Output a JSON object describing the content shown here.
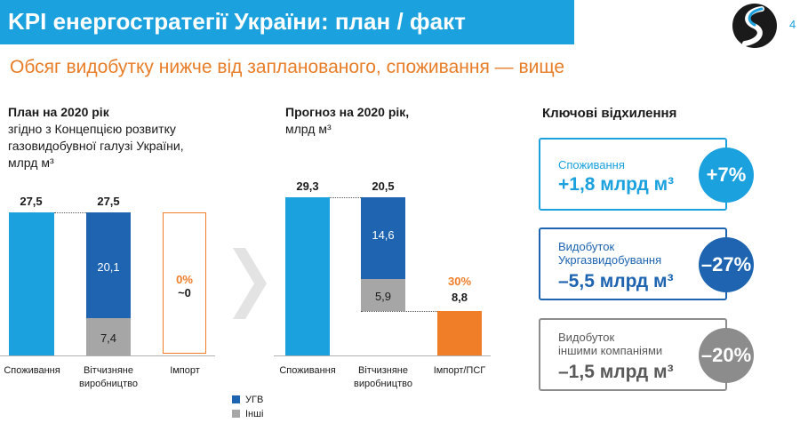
{
  "header": {
    "title": "KPI енергостратегії України: план / факт",
    "page_number": "4",
    "subtitle": "Обсяг видобутку нижче від запланованого, споживання — вище"
  },
  "plan": {
    "heading": "План на 2020 рік",
    "desc": [
      "згідно з Концепцією розвитку",
      "газовидобувної галузі України,",
      "млрд м³"
    ],
    "bars": [
      {
        "label": "Споживання",
        "total": "27,5"
      },
      {
        "label1": "Вітчизняне",
        "label2": "виробництво",
        "total": "27,5",
        "ugv": "20,1",
        "other": "7,4"
      },
      {
        "label": "Імпорт",
        "pct": "0%",
        "value": "~0"
      }
    ]
  },
  "forecast": {
    "heading": "Прогноз на 2020 рік,",
    "desc": "млрд м³",
    "bars": [
      {
        "label": "Споживання",
        "total": "29,3"
      },
      {
        "label1": "Вітчизняне",
        "label2": "виробництво",
        "total": "20,5",
        "ugv": "14,6",
        "other": "5,9"
      },
      {
        "label": "Імпорт/ПСГ",
        "pct": "30%",
        "value": "8,8"
      }
    ]
  },
  "legend": {
    "ugv": "УГВ",
    "other": "Інші"
  },
  "key": {
    "heading": "Ключові відхилення",
    "cards": [
      {
        "label1": "Споживання",
        "label2": "",
        "value": "+1,8 млрд м³",
        "pct": "+7%"
      },
      {
        "label1": "Видобуток",
        "label2": "Укргазвидобування",
        "value": "–5,5 млрд м³",
        "pct": "–27%"
      },
      {
        "label1": "Видобуток",
        "label2": "іншими компаніями",
        "value": "–1,5 млрд м³",
        "pct": "–20%"
      }
    ]
  },
  "colors": {
    "light_blue": "#1aa1de",
    "dark_blue": "#1e64b0",
    "gray": "#a6a6a6",
    "orange": "#f07d28",
    "card_gray": "#8c8c8c"
  }
}
